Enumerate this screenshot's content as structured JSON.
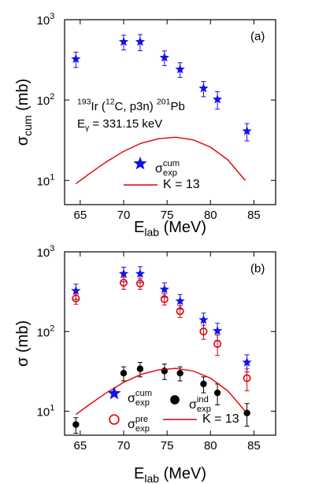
{
  "chart_data": [
    {
      "type": "scatter",
      "panel_label": "(a)",
      "log_y": true,
      "xlim": [
        63.2,
        87.5
      ],
      "ylim": [
        5,
        1000
      ],
      "xticks": [
        65,
        70,
        75,
        80,
        85
      ],
      "yticks": [
        {
          "value": 10,
          "label": "10",
          "exp": "1"
        },
        {
          "value": 100,
          "label": "10",
          "exp": "2"
        },
        {
          "value": 1000,
          "label": "10",
          "exp": "3"
        }
      ],
      "x_label": [
        {
          "text": "E"
        },
        {
          "text": "lab",
          "sub": true
        },
        {
          "text": " (MeV)"
        }
      ],
      "y_label": [
        {
          "text": "σ"
        },
        {
          "text": "cum",
          "sub": true
        },
        {
          "text": " (mb)"
        }
      ],
      "annotations": [
        [
          {
            "text": "193",
            "sup": true
          },
          {
            "text": "Ir ("
          },
          {
            "text": "12",
            "sup": true
          },
          {
            "text": "C, p3n) "
          },
          {
            "text": "201",
            "sup": true
          },
          {
            "text": "Pb"
          }
        ],
        [
          {
            "text": "E"
          },
          {
            "text": "γ",
            "sub": true
          },
          {
            "text": " = 331.15 keV"
          }
        ]
      ],
      "series": [
        {
          "name": [
            {
              "text": "σ"
            },
            {
              "text": "exp",
              "sub": true
            },
            {
              "text": "cum",
              "sup": true,
              "stack": true
            }
          ],
          "color": "#1010f0",
          "marker": "star",
          "x": [
            64.5,
            70,
            71.9,
            74.7,
            76.5,
            79.2,
            80.8,
            84.2
          ],
          "values": [
            324,
            531,
            531,
            338,
            241,
            140,
            102,
            41
          ],
          "errors": [
            70,
            110,
            120,
            70,
            50,
            30,
            25,
            10
          ]
        },
        {
          "name": [
            {
              "text": "K = 13"
            }
          ],
          "color": "#e00000",
          "marker": "line",
          "x": [
            64.5,
            66,
            68,
            70,
            72,
            74,
            76,
            78,
            80,
            82,
            84
          ],
          "values": [
            9.1,
            12,
            17,
            23,
            29,
            33,
            34.5,
            32,
            26,
            18,
            10
          ]
        }
      ]
    },
    {
      "type": "scatter",
      "panel_label": "(b)",
      "log_y": true,
      "xlim": [
        63.2,
        87.5
      ],
      "ylim": [
        5,
        1000
      ],
      "xticks": [
        65,
        70,
        75,
        80,
        85
      ],
      "yticks": [
        {
          "value": 10,
          "label": "10",
          "exp": "1"
        },
        {
          "value": 100,
          "label": "10",
          "exp": "2"
        },
        {
          "value": 1000,
          "label": "10",
          "exp": "3"
        }
      ],
      "x_label": [
        {
          "text": "E"
        },
        {
          "text": "lab",
          "sub": true
        },
        {
          "text": " (MeV)"
        }
      ],
      "y_label": [
        {
          "text": "σ (mb)"
        }
      ],
      "series": [
        {
          "name": [
            {
              "text": "σ"
            },
            {
              "text": "exp",
              "sub": true
            },
            {
              "text": "cum",
              "sup": true,
              "stack": true
            }
          ],
          "color": "#1010f0",
          "marker": "star",
          "x": [
            64.5,
            70,
            71.9,
            74.7,
            76.5,
            79.2,
            80.8,
            84.2
          ],
          "values": [
            324,
            531,
            531,
            338,
            241,
            140,
            102,
            41
          ],
          "errors": [
            70,
            110,
            120,
            70,
            50,
            30,
            25,
            10
          ]
        },
        {
          "name": [
            {
              "text": "σ"
            },
            {
              "text": "exp",
              "sub": true
            },
            {
              "text": "pre",
              "sup": true,
              "stack": true
            }
          ],
          "color": "#e00000",
          "marker": "open-circle",
          "x": [
            64.5,
            70,
            71.9,
            74.7,
            76.5,
            79.2,
            80.8,
            84.2
          ],
          "values": [
            260,
            410,
            400,
            255,
            180,
            100,
            70,
            26
          ],
          "errors": [
            40,
            70,
            60,
            40,
            30,
            20,
            20,
            8
          ]
        },
        {
          "name": [
            {
              "text": "σ"
            },
            {
              "text": "exp",
              "sub": true
            },
            {
              "text": "ind",
              "sup": true,
              "stack": true
            }
          ],
          "color": "#000000",
          "marker": "circle",
          "x": [
            64.5,
            70,
            71.9,
            74.7,
            76.5,
            79.2,
            80.8,
            84.2
          ],
          "values": [
            6.8,
            30,
            34,
            32,
            30,
            22,
            17,
            9.5
          ],
          "errors": [
            1.5,
            6,
            7,
            7,
            6,
            5,
            5,
            3
          ]
        },
        {
          "name": [
            {
              "text": "K = 13"
            }
          ],
          "color": "#e00000",
          "marker": "line",
          "x": [
            64.5,
            66,
            68,
            70,
            72,
            74,
            76,
            78,
            80,
            82,
            84
          ],
          "values": [
            9.1,
            12,
            17,
            23,
            29,
            33,
            34.5,
            32,
            26,
            18,
            10
          ]
        }
      ]
    }
  ]
}
